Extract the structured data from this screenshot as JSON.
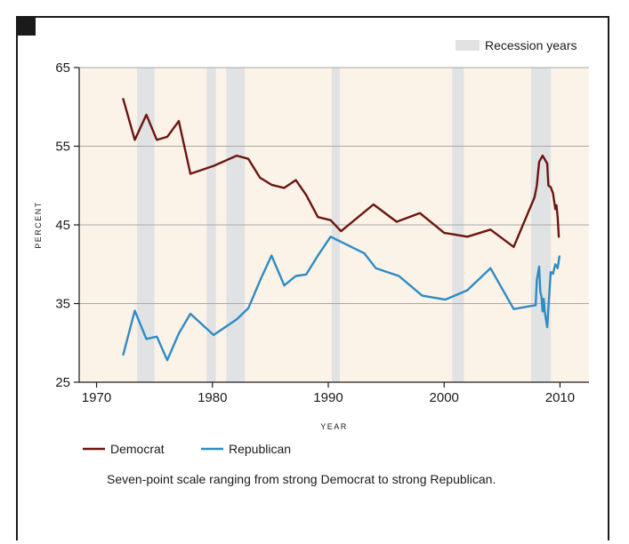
{
  "chart_data": {
    "type": "line",
    "xlabel": "YEAR",
    "ylabel": "PERCENT",
    "xlim": [
      1968.5,
      2012.5
    ],
    "ylim": [
      25,
      65
    ],
    "x_ticks": [
      1970,
      1980,
      1990,
      2000,
      2010
    ],
    "y_ticks": [
      25,
      35,
      45,
      55,
      65
    ],
    "grid": "horizontal",
    "legend_placement": "bottom-left",
    "recession_label": "Recession years",
    "recessions": [
      [
        1973.5,
        1975.0
      ],
      [
        1979.5,
        1980.3
      ],
      [
        1981.2,
        1982.8
      ],
      [
        1990.3,
        1991.0
      ],
      [
        2000.7,
        2001.7
      ],
      [
        2007.5,
        2009.2
      ]
    ],
    "colors": {
      "recession": "#e1e2e3",
      "plot_bg": "#fbf3e8",
      "grid": "#a9a9a9",
      "axis": "#1a1a1a"
    },
    "series": [
      {
        "name": "Democrat",
        "color": "#6b1510",
        "x": [
          1972.3,
          1973.3,
          1974.3,
          1975.2,
          1976.1,
          1977.1,
          1978.1,
          1980.1,
          1982.1,
          1983.1,
          1984.1,
          1985.1,
          1986.2,
          1987.2,
          1988.1,
          1989.1,
          1990.2,
          1991.1,
          1993.9,
          1995.9,
          1997.9,
          2000.0,
          2002.0,
          2004.0,
          2006.0,
          2007.8,
          2008.0,
          2008.2,
          2008.5,
          2008.9,
          2009.0,
          2009.2,
          2009.4,
          2009.6,
          2009.7,
          2009.8,
          2009.9
        ],
        "values": [
          61.0,
          55.8,
          59.0,
          55.8,
          56.2,
          58.2,
          51.5,
          52.5,
          53.8,
          53.4,
          51.0,
          50.1,
          49.7,
          50.7,
          48.8,
          46.0,
          45.6,
          44.2,
          47.6,
          45.4,
          46.5,
          44.0,
          43.5,
          44.4,
          42.2,
          48.5,
          50.0,
          53.0,
          53.8,
          52.8,
          50.0,
          49.8,
          49.0,
          47.0,
          47.5,
          46.0,
          43.5
        ]
      },
      {
        "name": "Republican",
        "color": "#2e8bc4",
        "x": [
          1972.3,
          1973.3,
          1974.3,
          1975.2,
          1976.1,
          1977.1,
          1978.1,
          1980.1,
          1982.1,
          1983.1,
          1984.1,
          1985.1,
          1986.2,
          1987.2,
          1988.1,
          1989.1,
          1990.2,
          1993.1,
          1994.1,
          1996.1,
          1998.1,
          2000.1,
          2002.0,
          2004.0,
          2006.0,
          2007.9,
          2008.0,
          2008.2,
          2008.3,
          2008.4,
          2008.5,
          2008.6,
          2008.7,
          2008.9,
          2009.0,
          2009.2,
          2009.4,
          2009.6,
          2009.8,
          2009.95
        ],
        "values": [
          28.5,
          34.1,
          30.5,
          30.8,
          27.8,
          31.2,
          33.7,
          31.0,
          33.0,
          34.4,
          37.9,
          41.1,
          37.3,
          38.5,
          38.7,
          41.1,
          43.5,
          41.4,
          39.5,
          38.5,
          36.0,
          35.5,
          36.7,
          39.5,
          34.3,
          34.8,
          38.0,
          39.7,
          36.5,
          35.9,
          34.0,
          35.6,
          33.8,
          32.0,
          34.5,
          39.0,
          38.8,
          40.0,
          39.5,
          41.0
        ]
      }
    ],
    "footnote": "Seven-point scale ranging from strong Democrat to strong Republican."
  }
}
